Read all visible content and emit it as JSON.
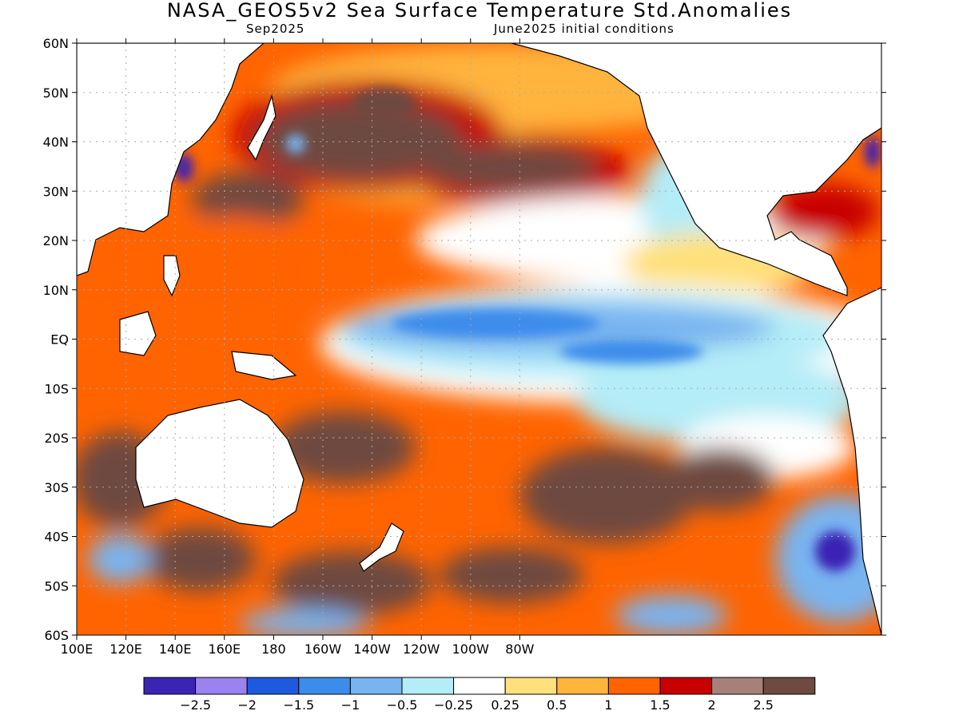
{
  "title": "NASA_GEOS5v2 Sea Surface Temperature Std.Anomalies",
  "subtitle_left": "Sep2025",
  "subtitle_right": "June2025 initial conditions",
  "lat_labels": [
    "60N",
    "50N",
    "40N",
    "30N",
    "20N",
    "10N",
    "EQ",
    "10S",
    "20S",
    "30S",
    "40S",
    "50S",
    "60S"
  ],
  "lon_labels": [
    "100E",
    "120E",
    "140E",
    "160E",
    "180",
    "160W",
    "140W",
    "120W",
    "100W",
    "80W"
  ],
  "colorbar": {
    "colors": [
      "#3a24b4",
      "#9a82f0",
      "#1e5ae0",
      "#3c8ceb",
      "#78b4f0",
      "#b4ecf7",
      "#ffffff",
      "#ffe07c",
      "#ffb43c",
      "#ff6400",
      "#c80000",
      "#a8807a",
      "#6e4a40"
    ],
    "labels": [
      "−2.5",
      "−2",
      "−1.5",
      "−1",
      "−0.5",
      "−0.25",
      "0.25",
      "0.5",
      "1",
      "1.5",
      "2",
      "2.5"
    ]
  },
  "map_colors": {
    "land": "#ffffff",
    "coast": "#000000",
    "grid": "#aaaaaa"
  }
}
